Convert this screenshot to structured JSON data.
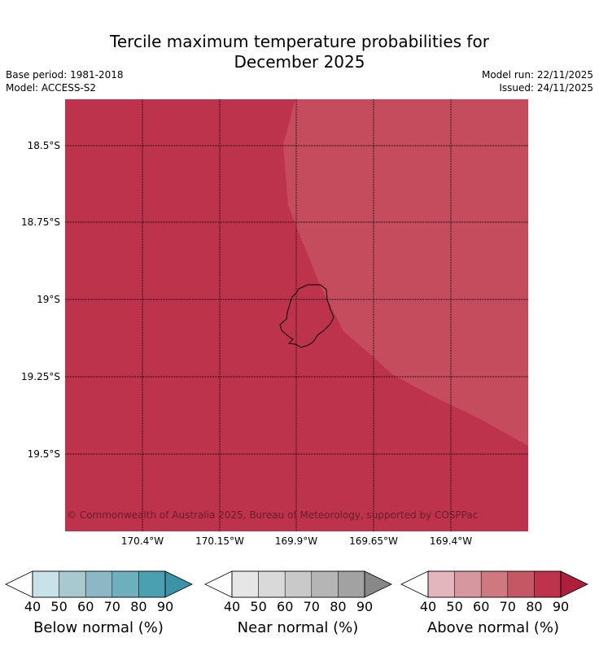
{
  "header": {
    "title_line1": "Tercile maximum temperature probabilities for",
    "title_line2": "December 2025",
    "base_period": "Base period: 1981-2018",
    "model": "Model: ACCESS-S2",
    "model_run": "Model run: 22/11/2025",
    "issued": "Issued: 24/11/2025"
  },
  "map": {
    "lat_labels": [
      "18.5°S",
      "18.75°S",
      "19°S",
      "19.25°S",
      "19.5°S"
    ],
    "lon_labels": [
      "170.4°W",
      "170.15°W",
      "169.9°W",
      "169.65°W",
      "169.4°W"
    ],
    "copyright": "© Commonwealth of Australia 2025, Bureau of Meteorology, supported by COSPPac",
    "colors": {
      "above_80_90": "#bd334b",
      "above_70_80": "#c44c5c",
      "land_outline": "#000000",
      "grid": "#000000"
    }
  },
  "legends": [
    {
      "label": "Below normal (%)",
      "ticks": [
        "40",
        "50",
        "60",
        "70",
        "80",
        "90"
      ],
      "colors": [
        "#ffffff",
        "#c9e1e8",
        "#a8c9cf",
        "#8bb8c4",
        "#6eafbd",
        "#4a9fb0",
        "#3a93a6"
      ]
    },
    {
      "label": "Near normal (%)",
      "ticks": [
        "40",
        "50",
        "60",
        "70",
        "80",
        "90"
      ],
      "colors": [
        "#ffffff",
        "#e6e6e6",
        "#d9d9d9",
        "#c9c9c9",
        "#b5b5b5",
        "#a2a2a2",
        "#888888"
      ]
    },
    {
      "label": "Above normal (%)",
      "ticks": [
        "40",
        "50",
        "60",
        "70",
        "80",
        "90"
      ],
      "colors": [
        "#ffffff",
        "#e2b6bc",
        "#d6979f",
        "#cf7880",
        "#c55765",
        "#bd334b",
        "#ad1f3c"
      ]
    }
  ]
}
